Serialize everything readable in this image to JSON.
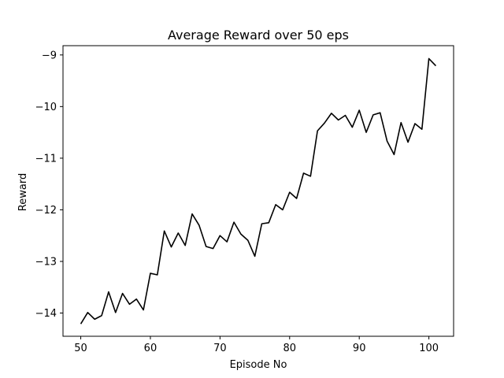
{
  "chart_data": {
    "type": "line",
    "title": "Average Reward over 50 eps",
    "xlabel": "Episode No",
    "ylabel": "Reward",
    "xlim": [
      47.45,
      103.55
    ],
    "ylim": [
      -14.45,
      -8.82
    ],
    "xticks": [
      50,
      60,
      70,
      80,
      90,
      100
    ],
    "yticks": [
      -14,
      -13,
      -12,
      -11,
      -10,
      -9
    ],
    "ytick_labels": [
      "−14",
      "−13",
      "−12",
      "−11",
      "−10",
      "−9"
    ],
    "grid": false,
    "series": [
      {
        "color": "#000000",
        "x": [
          50,
          51,
          52,
          53,
          54,
          55,
          56,
          57,
          58,
          59,
          60,
          61,
          62,
          63,
          64,
          65,
          66,
          67,
          68,
          69,
          70,
          71,
          72,
          73,
          74,
          75,
          76,
          77,
          78,
          79,
          80,
          81,
          82,
          83,
          84,
          85,
          86,
          87,
          88,
          89,
          90,
          91,
          92,
          93,
          94,
          95,
          96,
          97,
          98,
          99,
          100,
          101
        ],
        "y": [
          -14.21,
          -13.99,
          -14.12,
          -14.05,
          -13.59,
          -13.99,
          -13.62,
          -13.83,
          -13.73,
          -13.94,
          -13.23,
          -13.26,
          -12.41,
          -12.72,
          -12.45,
          -12.69,
          -12.08,
          -12.3,
          -12.71,
          -12.75,
          -12.5,
          -12.62,
          -12.24,
          -12.47,
          -12.59,
          -12.9,
          -12.27,
          -12.25,
          -11.9,
          -12.0,
          -11.66,
          -11.78,
          -11.29,
          -11.35,
          -10.47,
          -10.32,
          -10.13,
          -10.26,
          -10.17,
          -10.4,
          -10.07,
          -10.5,
          -10.16,
          -10.12,
          -10.67,
          -10.93,
          -10.31,
          -10.69,
          -10.33,
          -10.44,
          -9.07,
          -9.21
        ]
      }
    ]
  }
}
